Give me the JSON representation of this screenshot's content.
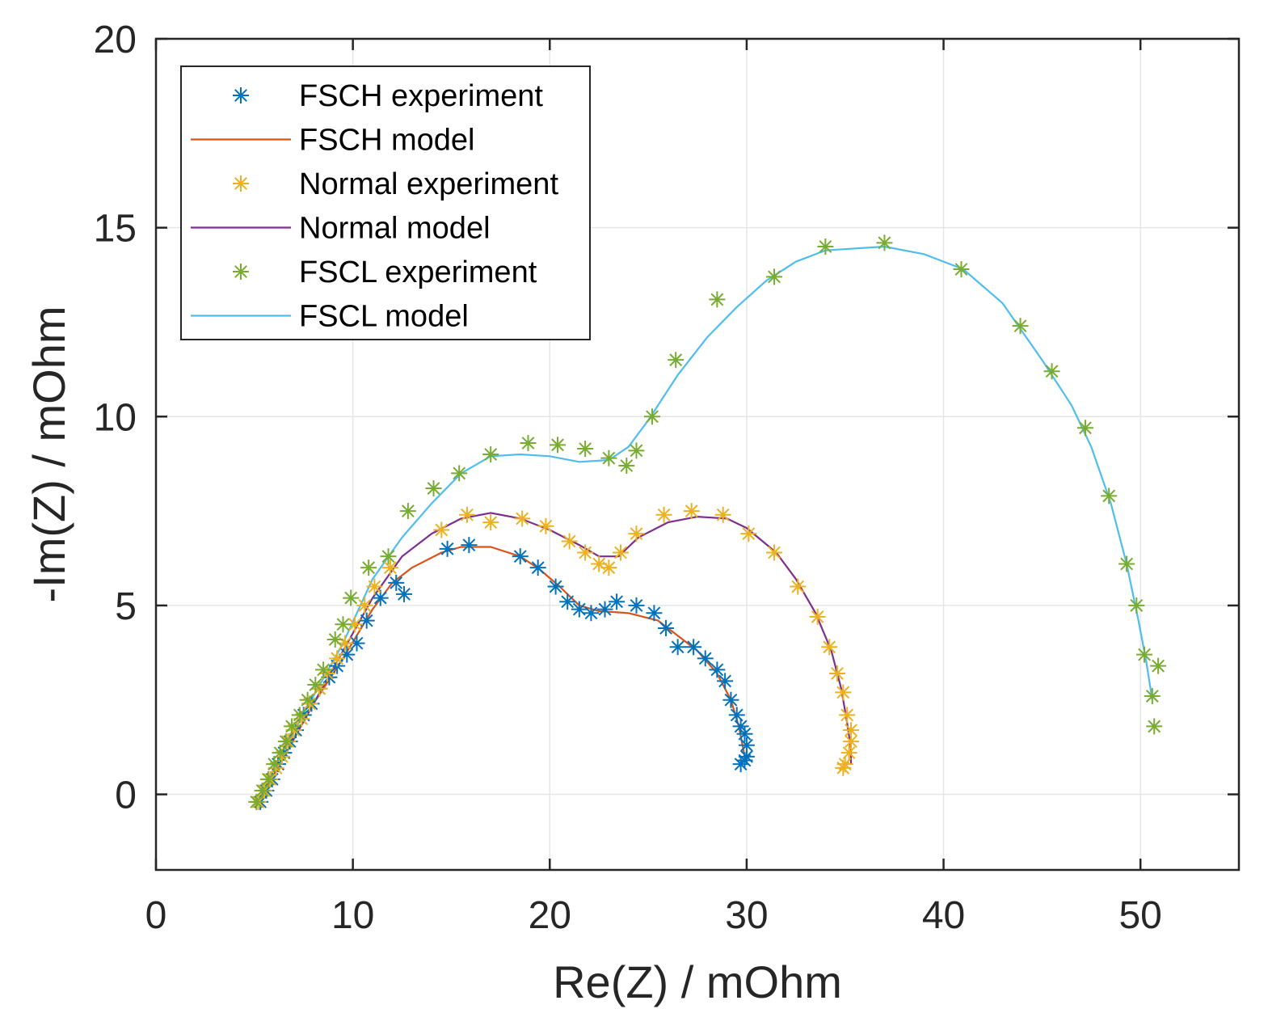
{
  "chart_data": {
    "type": "line",
    "title": "",
    "xlabel": "Re(Z) / mOhm",
    "ylabel": "-Im(Z) / mOhm",
    "xlim": [
      0,
      55
    ],
    "ylim": [
      -2,
      20
    ],
    "xticks": [
      0,
      10,
      20,
      30,
      40,
      50
    ],
    "yticks": [
      0,
      5,
      10,
      15,
      20
    ],
    "grid": true,
    "legend_position": "top-left",
    "series": [
      {
        "name": "FSCH experiment",
        "kind": "markers",
        "color": "#0072BD",
        "points": [
          [
            5.3,
            -0.2
          ],
          [
            5.6,
            0.1
          ],
          [
            5.9,
            0.4
          ],
          [
            6.2,
            0.8
          ],
          [
            6.5,
            1.1
          ],
          [
            6.8,
            1.4
          ],
          [
            7.1,
            1.7
          ],
          [
            7.5,
            2.1
          ],
          [
            7.9,
            2.4
          ],
          [
            8.3,
            2.8
          ],
          [
            8.8,
            3.1
          ],
          [
            9.2,
            3.4
          ],
          [
            9.7,
            3.7
          ],
          [
            10.2,
            4.0
          ],
          [
            10.7,
            4.6
          ],
          [
            11.4,
            5.2
          ],
          [
            12.2,
            5.6
          ],
          [
            12.6,
            5.3
          ],
          [
            14.8,
            6.5
          ],
          [
            15.9,
            6.6
          ],
          [
            18.5,
            6.3
          ],
          [
            19.4,
            6.0
          ],
          [
            20.3,
            5.5
          ],
          [
            20.9,
            5.1
          ],
          [
            21.5,
            4.9
          ],
          [
            22.1,
            4.8
          ],
          [
            22.8,
            4.9
          ],
          [
            23.4,
            5.1
          ],
          [
            24.4,
            5.0
          ],
          [
            25.3,
            4.8
          ],
          [
            25.9,
            4.4
          ],
          [
            26.5,
            3.9
          ],
          [
            27.3,
            3.9
          ],
          [
            27.9,
            3.6
          ],
          [
            28.5,
            3.3
          ],
          [
            28.9,
            3.0
          ],
          [
            29.2,
            2.5
          ],
          [
            29.5,
            2.1
          ],
          [
            29.7,
            1.8
          ],
          [
            29.9,
            1.6
          ],
          [
            30.0,
            1.3
          ],
          [
            30.0,
            1.0
          ],
          [
            29.9,
            0.9
          ],
          [
            29.7,
            0.8
          ]
        ]
      },
      {
        "name": "FSCH model",
        "kind": "line",
        "color": "#D95319",
        "points": [
          [
            5.3,
            -0.2
          ],
          [
            6.5,
            1.0
          ],
          [
            8.0,
            2.4
          ],
          [
            9.5,
            3.6
          ],
          [
            11.0,
            4.9
          ],
          [
            12.0,
            5.6
          ],
          [
            13.0,
            6.0
          ],
          [
            14.5,
            6.4
          ],
          [
            15.5,
            6.55
          ],
          [
            17.0,
            6.55
          ],
          [
            18.5,
            6.3
          ],
          [
            19.5,
            5.95
          ],
          [
            20.5,
            5.5
          ],
          [
            21.5,
            5.0
          ],
          [
            22.5,
            4.85
          ],
          [
            24.0,
            4.8
          ],
          [
            25.5,
            4.6
          ],
          [
            26.5,
            4.2
          ],
          [
            27.5,
            3.8
          ],
          [
            28.5,
            3.2
          ],
          [
            29.2,
            2.5
          ],
          [
            29.6,
            1.8
          ],
          [
            29.9,
            1.0
          ],
          [
            29.9,
            0.8
          ]
        ]
      },
      {
        "name": "Normal experiment",
        "kind": "markers",
        "color": "#EDB120",
        "points": [
          [
            5.2,
            -0.2
          ],
          [
            5.5,
            0.1
          ],
          [
            5.8,
            0.4
          ],
          [
            6.1,
            0.7
          ],
          [
            6.4,
            1.0
          ],
          [
            6.7,
            1.4
          ],
          [
            7.0,
            1.7
          ],
          [
            7.4,
            2.0
          ],
          [
            7.8,
            2.4
          ],
          [
            8.3,
            2.8
          ],
          [
            8.7,
            3.2
          ],
          [
            9.2,
            3.6
          ],
          [
            9.6,
            4.0
          ],
          [
            10.1,
            4.5
          ],
          [
            10.6,
            5.0
          ],
          [
            11.1,
            5.5
          ],
          [
            11.9,
            6.0
          ],
          [
            14.5,
            7.0
          ],
          [
            15.8,
            7.4
          ],
          [
            17.0,
            7.2
          ],
          [
            18.6,
            7.3
          ],
          [
            19.8,
            7.1
          ],
          [
            21.0,
            6.7
          ],
          [
            21.8,
            6.4
          ],
          [
            22.5,
            6.1
          ],
          [
            23.0,
            6.0
          ],
          [
            23.6,
            6.4
          ],
          [
            24.4,
            6.9
          ],
          [
            25.8,
            7.4
          ],
          [
            27.2,
            7.5
          ],
          [
            28.8,
            7.4
          ],
          [
            30.1,
            6.9
          ],
          [
            31.4,
            6.4
          ],
          [
            32.6,
            5.5
          ],
          [
            33.6,
            4.7
          ],
          [
            34.2,
            3.9
          ],
          [
            34.6,
            3.2
          ],
          [
            34.9,
            2.7
          ],
          [
            35.1,
            2.1
          ],
          [
            35.3,
            1.7
          ],
          [
            35.3,
            1.4
          ],
          [
            35.2,
            1.1
          ],
          [
            35.0,
            0.8
          ],
          [
            34.9,
            0.7
          ]
        ]
      },
      {
        "name": "Normal model",
        "kind": "line",
        "color": "#7E2F8E",
        "points": [
          [
            5.2,
            -0.2
          ],
          [
            6.5,
            1.0
          ],
          [
            8.0,
            2.4
          ],
          [
            9.5,
            3.8
          ],
          [
            11.0,
            5.2
          ],
          [
            12.5,
            6.3
          ],
          [
            14.0,
            6.9
          ],
          [
            15.5,
            7.3
          ],
          [
            17.0,
            7.45
          ],
          [
            18.5,
            7.3
          ],
          [
            20.0,
            7.0
          ],
          [
            21.5,
            6.6
          ],
          [
            22.5,
            6.3
          ],
          [
            23.5,
            6.3
          ],
          [
            24.5,
            6.8
          ],
          [
            26.0,
            7.2
          ],
          [
            27.5,
            7.35
          ],
          [
            29.0,
            7.3
          ],
          [
            30.0,
            7.05
          ],
          [
            31.5,
            6.4
          ],
          [
            32.5,
            5.7
          ],
          [
            33.5,
            4.8
          ],
          [
            34.3,
            3.8
          ],
          [
            34.8,
            2.8
          ],
          [
            35.1,
            1.9
          ],
          [
            35.3,
            1.2
          ],
          [
            35.3,
            0.8
          ]
        ]
      },
      {
        "name": "FSCL experiment",
        "kind": "markers",
        "color": "#77AC30",
        "points": [
          [
            5.1,
            -0.2
          ],
          [
            5.4,
            0.1
          ],
          [
            5.7,
            0.4
          ],
          [
            6.0,
            0.8
          ],
          [
            6.3,
            1.1
          ],
          [
            6.6,
            1.4
          ],
          [
            6.9,
            1.8
          ],
          [
            7.3,
            2.1
          ],
          [
            7.7,
            2.5
          ],
          [
            8.1,
            2.9
          ],
          [
            8.5,
            3.3
          ],
          [
            9.1,
            4.1
          ],
          [
            9.5,
            4.5
          ],
          [
            9.9,
            5.2
          ],
          [
            10.8,
            6.0
          ],
          [
            11.8,
            6.3
          ],
          [
            12.8,
            7.5
          ],
          [
            14.1,
            8.1
          ],
          [
            15.4,
            8.5
          ],
          [
            17.0,
            9.0
          ],
          [
            18.9,
            9.3
          ],
          [
            20.4,
            9.25
          ],
          [
            21.8,
            9.15
          ],
          [
            23.0,
            8.9
          ],
          [
            23.9,
            8.7
          ],
          [
            24.4,
            9.1
          ],
          [
            25.2,
            10.0
          ],
          [
            26.4,
            11.5
          ],
          [
            28.5,
            13.1
          ],
          [
            31.4,
            13.7
          ],
          [
            34.0,
            14.5
          ],
          [
            37.0,
            14.6
          ],
          [
            40.9,
            13.9
          ],
          [
            43.9,
            12.4
          ],
          [
            45.5,
            11.2
          ],
          [
            47.2,
            9.7
          ],
          [
            48.4,
            7.9
          ],
          [
            49.3,
            6.1
          ],
          [
            49.8,
            5.0
          ],
          [
            50.2,
            3.7
          ],
          [
            50.6,
            2.6
          ],
          [
            50.9,
            3.4
          ],
          [
            50.7,
            1.8
          ]
        ]
      },
      {
        "name": "FSCL model",
        "kind": "line",
        "color": "#4DBEEE",
        "points": [
          [
            5.1,
            -0.2
          ],
          [
            6.5,
            1.2
          ],
          [
            8.0,
            2.6
          ],
          [
            9.5,
            4.0
          ],
          [
            11.0,
            5.7
          ],
          [
            12.5,
            6.8
          ],
          [
            14.0,
            7.7
          ],
          [
            15.5,
            8.5
          ],
          [
            17.0,
            8.95
          ],
          [
            18.5,
            9.0
          ],
          [
            20.0,
            8.95
          ],
          [
            21.5,
            8.8
          ],
          [
            23.0,
            8.85
          ],
          [
            24.0,
            9.2
          ],
          [
            25.0,
            9.9
          ],
          [
            26.5,
            11.1
          ],
          [
            28.0,
            12.1
          ],
          [
            29.5,
            12.9
          ],
          [
            31.0,
            13.6
          ],
          [
            32.5,
            14.1
          ],
          [
            34.0,
            14.4
          ],
          [
            37.0,
            14.5
          ],
          [
            39.0,
            14.3
          ],
          [
            41.0,
            13.9
          ],
          [
            43.0,
            13.0
          ],
          [
            45.0,
            11.5
          ],
          [
            46.5,
            10.3
          ],
          [
            47.5,
            9.2
          ],
          [
            48.5,
            7.7
          ],
          [
            49.3,
            6.1
          ],
          [
            49.9,
            4.6
          ],
          [
            50.3,
            3.5
          ],
          [
            50.6,
            2.5
          ]
        ]
      }
    ]
  }
}
